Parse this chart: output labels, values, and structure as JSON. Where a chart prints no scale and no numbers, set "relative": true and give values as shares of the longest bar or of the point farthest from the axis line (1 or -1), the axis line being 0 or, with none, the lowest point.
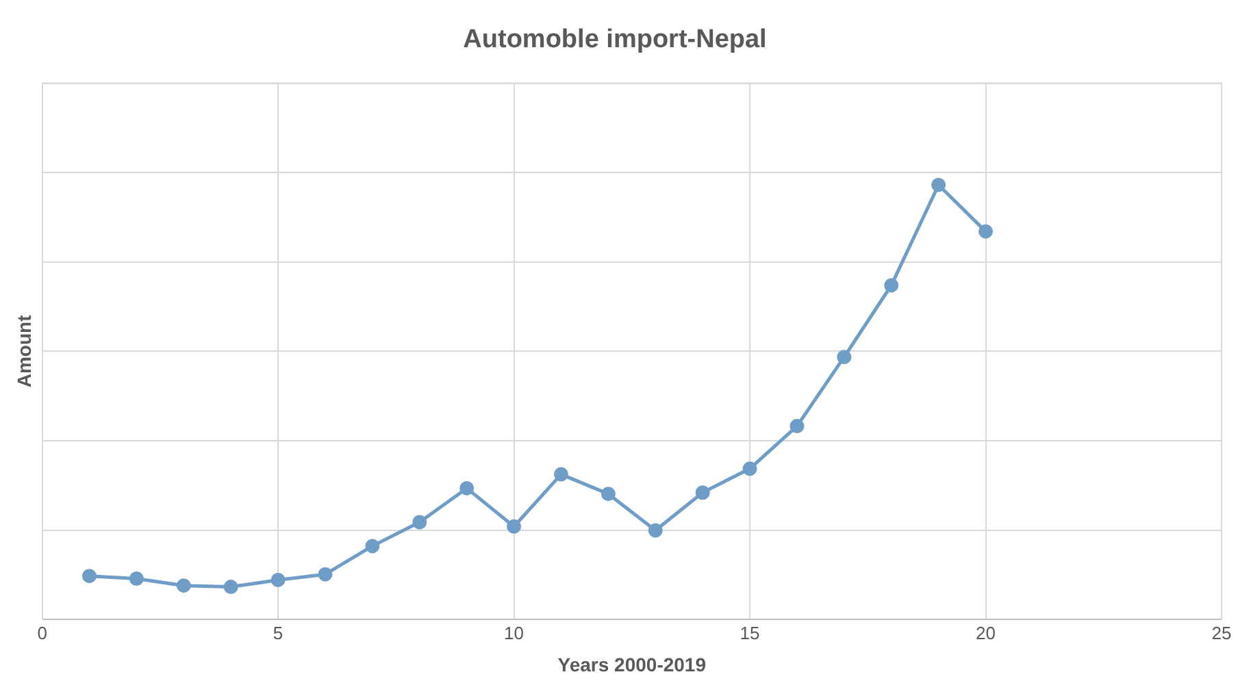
{
  "chart_data": {
    "type": "line",
    "title": "Automoble import-Nepal",
    "xlabel": "Years 2000-2019",
    "ylabel": "Amount",
    "relative": true,
    "x": [
      1,
      2,
      3,
      4,
      5,
      6,
      7,
      8,
      9,
      10,
      11,
      12,
      13,
      14,
      15,
      16,
      17,
      18,
      19,
      20
    ],
    "series": [
      {
        "color": "#6f9dc7",
        "values": [
          0.1,
          0.094,
          0.078,
          0.075,
          0.091,
          0.104,
          0.169,
          0.224,
          0.302,
          0.214,
          0.334,
          0.289,
          0.205,
          0.292,
          0.347,
          0.445,
          0.604,
          0.769,
          1,
          0.893
        ]
      }
    ],
    "xlim": [
      0,
      25
    ],
    "xticks": [
      0,
      5,
      10,
      15,
      20,
      25
    ],
    "grid": true,
    "legend": false,
    "marker": "circle",
    "line_style": "solid"
  }
}
